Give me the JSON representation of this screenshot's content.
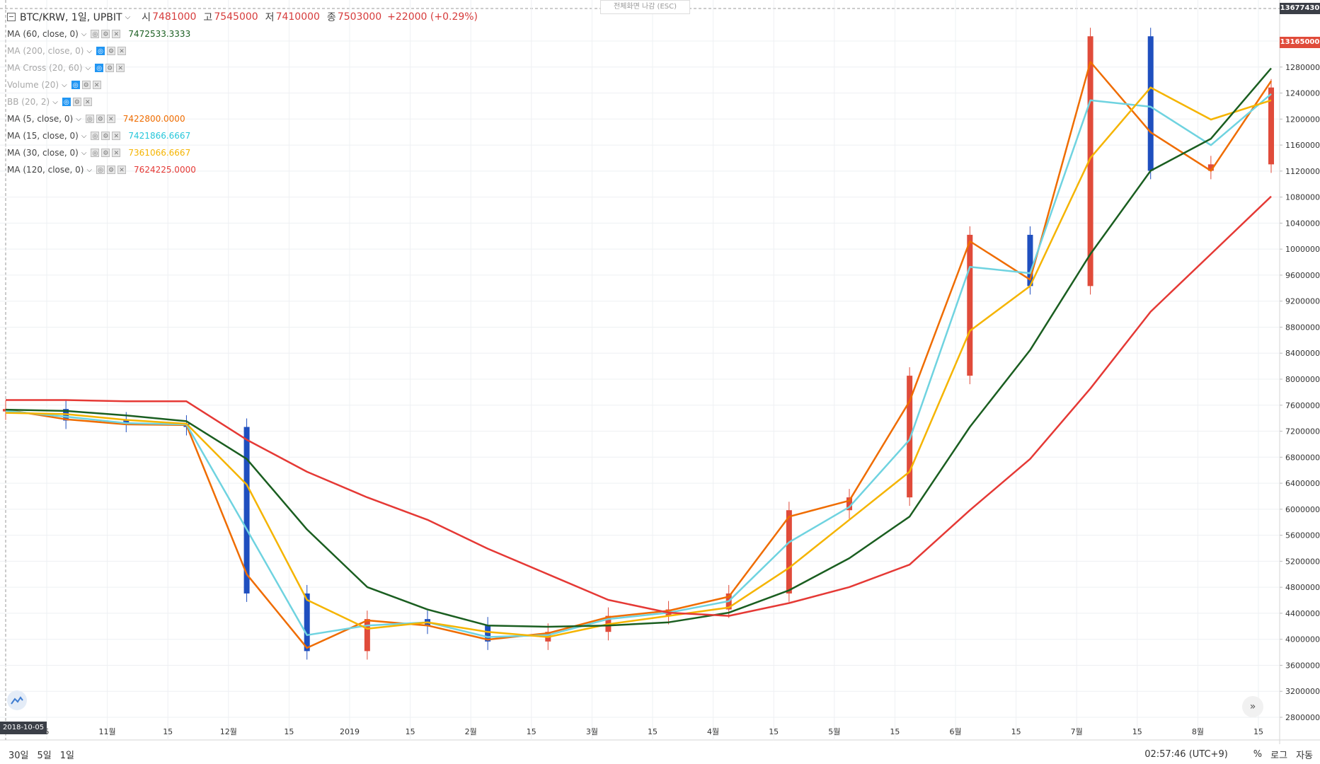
{
  "header": {
    "symbol": "BTC/KRW, 1일, UPBIT",
    "ohlc": [
      {
        "k": "시",
        "v": "7481000"
      },
      {
        "k": "고",
        "v": "7545000"
      },
      {
        "k": "저",
        "v": "7410000"
      },
      {
        "k": "종",
        "v": "7503000"
      }
    ],
    "change": "+22000 (+0.29%)"
  },
  "fullscreen_hint": "전체화면 나감 (ESC)",
  "studies": [
    {
      "name": "MA (60, close, 0)",
      "value": "7472533.3333",
      "color": "#1a5e20",
      "muted": false
    },
    {
      "name": "MA (200, close, 0)",
      "value": "",
      "color": "",
      "muted": true
    },
    {
      "name": "MA Cross (20, 60)",
      "value": "",
      "color": "",
      "muted": true
    },
    {
      "name": "Volume (20)",
      "value": "",
      "color": "",
      "muted": true
    },
    {
      "name": "BB (20, 2)",
      "value": "",
      "color": "",
      "muted": true
    },
    {
      "name": "MA (5, close, 0)",
      "value": "7422800.0000",
      "color": "#ef6c00",
      "muted": false
    },
    {
      "name": "MA (15, close, 0)",
      "value": "7421866.6667",
      "color": "#26c6da",
      "muted": false
    },
    {
      "name": "MA (30, close, 0)",
      "value": "7361066.6667",
      "color": "#f5b400",
      "muted": false
    },
    {
      "name": "MA (120, close, 0)",
      "value": "7624225.0000",
      "color": "#e53935",
      "muted": false
    }
  ],
  "price_tags": {
    "crosshair": "13677430",
    "last": "13165000"
  },
  "price_axis_labels": [
    "13200000",
    "12800000",
    "12400000",
    "12000000",
    "11600000",
    "11200000",
    "10800000",
    "10400000",
    "10000000",
    "9600000",
    "9200000",
    "8800000",
    "8400000",
    "8000000",
    "7600000",
    "7200000",
    "6800000",
    "6400000",
    "6000000",
    "5600000",
    "5200000",
    "4800000",
    "4400000",
    "4000000",
    "3600000",
    "3200000",
    "2800000"
  ],
  "time_axis_labels": [
    "5",
    "11월",
    "15",
    "12월",
    "15",
    "2019",
    "15",
    "2월",
    "15",
    "3월",
    "15",
    "4월",
    "15",
    "5월",
    "15",
    "6월",
    "15",
    "7월",
    "15",
    "8월",
    "15"
  ],
  "crosshair_date": "2018-10-05",
  "bottom": {
    "ranges": [
      "30일",
      "5일",
      "1일"
    ],
    "clock": "02:57:46 (UTC+9)",
    "percent": "%",
    "log": "로그",
    "auto": "자동"
  },
  "colors": {
    "up": "#e04b3a",
    "down": "#1f4fbf",
    "grid": "#eef0f3"
  },
  "chart_data": {
    "type": "line",
    "title": "BTC/KRW, 1일, UPBIT",
    "x": [
      "2018-10-01",
      "2018-10-15",
      "2018-11-01",
      "2018-11-15",
      "2018-12-01",
      "2018-12-15",
      "2019-01-01",
      "2019-01-15",
      "2019-02-01",
      "2019-02-15",
      "2019-03-01",
      "2019-03-15",
      "2019-04-01",
      "2019-04-15",
      "2019-05-01",
      "2019-05-15",
      "2019-06-01",
      "2019-06-15",
      "2019-07-01",
      "2019-07-15",
      "2019-08-01",
      "2019-08-15"
    ],
    "candle_close": [
      7480000,
      7300000,
      7250000,
      7200000,
      4600000,
      3700000,
      4200000,
      4100000,
      3850000,
      4000000,
      4250000,
      4350000,
      4600000,
      5900000,
      6100000,
      8000000,
      10200000,
      9400000,
      13300000,
      11200000,
      11300000,
      12500000
    ],
    "series": [
      {
        "name": "MA (5, close, 0)",
        "values": [
          7470000,
          7320000,
          7240000,
          7230000,
          4900000,
          3750000,
          4180000,
          4100000,
          3880000,
          3980000,
          4230000,
          4330000,
          4550000,
          5800000,
          6050000,
          7600000,
          10100000,
          9500000,
          12900000,
          11800000,
          11200000,
          12600000
        ]
      },
      {
        "name": "MA (15, close, 0)",
        "values": [
          7450000,
          7360000,
          7260000,
          7240000,
          5600000,
          3950000,
          4100000,
          4150000,
          3920000,
          3950000,
          4200000,
          4300000,
          4480000,
          5400000,
          5950000,
          7000000,
          9700000,
          9600000,
          12300000,
          12200000,
          11600000,
          12400000
        ]
      },
      {
        "name": "MA (30, close, 0)",
        "values": [
          7420000,
          7400000,
          7310000,
          7250000,
          6300000,
          4500000,
          4050000,
          4150000,
          4000000,
          3920000,
          4120000,
          4250000,
          4380000,
          5000000,
          5750000,
          6500000,
          8700000,
          9400000,
          11400000,
          12500000,
          12000000,
          12300000
        ]
      },
      {
        "name": "MA (60, close, 0)",
        "values": [
          7470000,
          7450000,
          7380000,
          7290000,
          6700000,
          5600000,
          4700000,
          4350000,
          4100000,
          4080000,
          4100000,
          4150000,
          4300000,
          4650000,
          5150000,
          5800000,
          7200000,
          8400000,
          9900000,
          11200000,
          11700000,
          12800000
        ]
      },
      {
        "name": "MA (120, close, 0)",
        "values": [
          7620000,
          7620000,
          7600000,
          7600000,
          7000000,
          6500000,
          6100000,
          5750000,
          5300000,
          4900000,
          4500000,
          4300000,
          4250000,
          4450000,
          4700000,
          5050000,
          5900000,
          6700000,
          7800000,
          9000000,
          9900000,
          10800000
        ]
      }
    ],
    "ylim": [
      2600000,
      13800000
    ],
    "scale": "linear",
    "grid": true
  }
}
